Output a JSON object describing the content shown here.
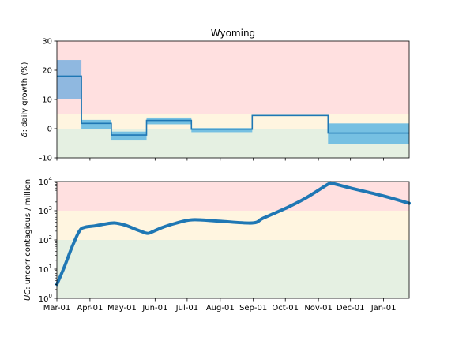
{
  "chart_data": [
    {
      "type": "step",
      "title": "Wyoming",
      "ylabel_symbol": "δ",
      "ylabel_text": ": daily growth (%)",
      "ylim": [
        -10,
        30
      ],
      "yticks": [
        -10,
        0,
        10,
        20,
        30
      ],
      "grid": false,
      "bands": [
        {
          "from": 5,
          "to": 30,
          "color": "#ffe0e0"
        },
        {
          "from": 0,
          "to": 5,
          "color": "#fff5e0"
        },
        {
          "from": -10,
          "to": 0,
          "color": "#e5f0e2"
        }
      ],
      "segments": [
        {
          "start": "2020-03-01",
          "end": "2020-03-24",
          "value": 18.0,
          "lo": 10.0,
          "hi": 23.5,
          "band_color": "#8fb8e0"
        },
        {
          "start": "2020-03-24",
          "end": "2020-04-21",
          "value": 1.8,
          "lo": 0.0,
          "hi": 3.0,
          "band_color": "#76c0e2"
        },
        {
          "start": "2020-04-21",
          "end": "2020-05-24",
          "value": -2.2,
          "lo": -3.8,
          "hi": -1.0,
          "band_color": "#76c0e2"
        },
        {
          "start": "2020-05-24",
          "end": "2020-07-05",
          "value": 2.8,
          "lo": 1.5,
          "hi": 3.8,
          "band_color": "#76c0e2"
        },
        {
          "start": "2020-07-05",
          "end": "2020-08-31",
          "value": -0.2,
          "lo": -1.2,
          "hi": 0.2,
          "band_color": "#76c0e2"
        },
        {
          "start": "2020-08-31",
          "end": "2020-11-10",
          "value": 4.5,
          "lo": 4.3,
          "hi": 4.7,
          "band_color": "#76c0e2"
        },
        {
          "start": "2020-11-10",
          "end": "2021-01-25",
          "value": -1.5,
          "lo": -5.3,
          "hi": 1.8,
          "band_color": "#76c0e2"
        }
      ],
      "line_color": "#1f77b4"
    },
    {
      "type": "line",
      "ylabel_symbol": "UC",
      "ylabel_text": ": uncorr contagious / million",
      "yscale": "log",
      "ylim": [
        1,
        10000
      ],
      "yticks": [
        {
          "value": 1,
          "base": "10",
          "exp": "0"
        },
        {
          "value": 10,
          "base": "10",
          "exp": "1"
        },
        {
          "value": 100,
          "base": "10",
          "exp": "2"
        },
        {
          "value": 1000,
          "base": "10",
          "exp": "3"
        },
        {
          "value": 10000,
          "base": "10",
          "exp": "4"
        }
      ],
      "grid": false,
      "bands": [
        {
          "from": 1000,
          "to": 10000,
          "color": "#ffe0e0"
        },
        {
          "from": 100,
          "to": 1000,
          "color": "#fff5e0"
        },
        {
          "from": 1,
          "to": 100,
          "color": "#e5f0e2"
        }
      ],
      "points": [
        {
          "x": "2020-03-01",
          "y": 3
        },
        {
          "x": "2020-03-08",
          "y": 12
        },
        {
          "x": "2020-03-15",
          "y": 55
        },
        {
          "x": "2020-03-22",
          "y": 200
        },
        {
          "x": "2020-03-27",
          "y": 270
        },
        {
          "x": "2020-04-05",
          "y": 300
        },
        {
          "x": "2020-04-15",
          "y": 350
        },
        {
          "x": "2020-04-24",
          "y": 380
        },
        {
          "x": "2020-05-04",
          "y": 320
        },
        {
          "x": "2020-05-14",
          "y": 230
        },
        {
          "x": "2020-05-24",
          "y": 170
        },
        {
          "x": "2020-05-28",
          "y": 180
        },
        {
          "x": "2020-06-07",
          "y": 260
        },
        {
          "x": "2020-06-20",
          "y": 370
        },
        {
          "x": "2020-07-06",
          "y": 490
        },
        {
          "x": "2020-07-31",
          "y": 440
        },
        {
          "x": "2020-08-31",
          "y": 380
        },
        {
          "x": "2020-09-10",
          "y": 550
        },
        {
          "x": "2020-10-01",
          "y": 1200
        },
        {
          "x": "2020-10-20",
          "y": 2700
        },
        {
          "x": "2020-11-10",
          "y": 8100
        },
        {
          "x": "2020-11-14",
          "y": 8600
        },
        {
          "x": "2020-12-01",
          "y": 6000
        },
        {
          "x": "2021-01-01",
          "y": 3200
        },
        {
          "x": "2021-01-25",
          "y": 1800
        }
      ],
      "line_color": "#1f77b4"
    }
  ],
  "x_axis": {
    "range": [
      "2020-03-01",
      "2021-01-25"
    ],
    "ticks": [
      {
        "date": "2020-03-01",
        "label": "Mar-01"
      },
      {
        "date": "2020-04-01",
        "label": "Apr-01"
      },
      {
        "date": "2020-05-01",
        "label": "May-01"
      },
      {
        "date": "2020-06-01",
        "label": "Jun-01"
      },
      {
        "date": "2020-07-01",
        "label": "Jul-01"
      },
      {
        "date": "2020-08-01",
        "label": "Aug-01"
      },
      {
        "date": "2020-09-01",
        "label": "Sep-01"
      },
      {
        "date": "2020-10-01",
        "label": "Oct-01"
      },
      {
        "date": "2020-11-01",
        "label": "Nov-01"
      },
      {
        "date": "2020-12-01",
        "label": "Dec-01"
      },
      {
        "date": "2021-01-01",
        "label": "Jan-01"
      }
    ]
  }
}
